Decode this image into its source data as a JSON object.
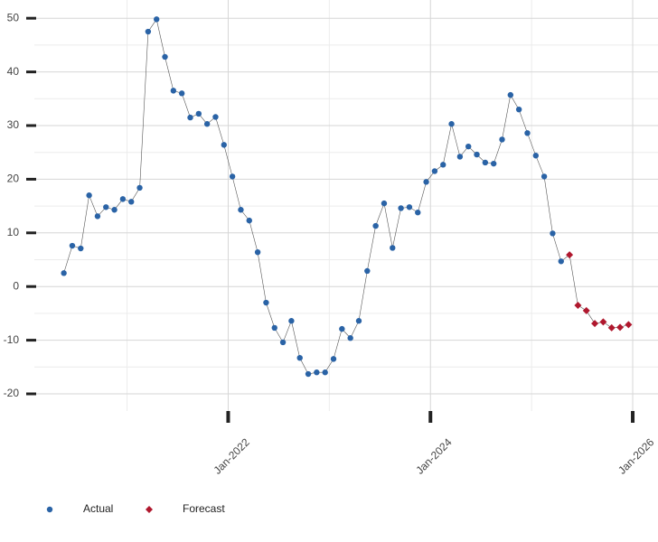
{
  "chart_data": {
    "type": "line",
    "x": [
      "2020-05",
      "2020-06",
      "2020-07",
      "2020-08",
      "2020-09",
      "2020-10",
      "2020-11",
      "2020-12",
      "2021-01",
      "2021-02",
      "2021-03",
      "2021-04",
      "2021-05",
      "2021-06",
      "2021-07",
      "2021-08",
      "2021-09",
      "2021-10",
      "2021-11",
      "2021-12",
      "2022-01",
      "2022-02",
      "2022-03",
      "2022-04",
      "2022-05",
      "2022-06",
      "2022-07",
      "2022-08",
      "2022-09",
      "2022-10",
      "2022-11",
      "2022-12",
      "2023-01",
      "2023-02",
      "2023-03",
      "2023-04",
      "2023-05",
      "2023-06",
      "2023-07",
      "2023-08",
      "2023-09",
      "2023-10",
      "2023-11",
      "2023-12",
      "2024-01",
      "2024-02",
      "2024-03",
      "2024-04",
      "2024-05",
      "2024-06",
      "2024-07",
      "2024-08",
      "2024-09",
      "2024-10",
      "2024-11",
      "2024-12",
      "2025-01",
      "2025-02",
      "2025-03",
      "2025-04",
      "2025-05",
      "2025-06",
      "2025-07",
      "2025-08",
      "2025-09",
      "2025-10",
      "2025-11",
      "2025-12"
    ],
    "series": [
      {
        "name": "Actual",
        "color": "#2a63a6",
        "marker": "circle",
        "values": [
          2.5,
          7.6,
          7.1,
          17.0,
          13.1,
          14.8,
          14.3,
          16.3,
          15.8,
          18.4,
          47.5,
          49.8,
          42.8,
          36.5,
          36.0,
          31.5,
          32.2,
          30.3,
          31.6,
          26.4,
          20.5,
          14.3,
          12.3,
          6.4,
          -3.0,
          -7.7,
          -10.4,
          -6.4,
          -13.3,
          -16.3,
          -16.0,
          -16.0,
          -13.5,
          -7.9,
          -9.6,
          -6.4,
          2.9,
          11.3,
          15.5,
          7.2,
          14.6,
          14.8,
          13.8,
          19.5,
          21.5,
          22.7,
          30.3,
          24.2,
          26.1,
          24.6,
          23.1,
          22.9,
          27.4,
          35.7,
          33.0,
          28.6,
          24.4,
          20.5,
          9.9,
          4.7,
          null,
          null,
          null,
          null,
          null,
          null,
          null,
          null
        ]
      },
      {
        "name": "Forecast",
        "color": "#b0182e",
        "marker": "diamond",
        "values": [
          null,
          null,
          null,
          null,
          null,
          null,
          null,
          null,
          null,
          null,
          null,
          null,
          null,
          null,
          null,
          null,
          null,
          null,
          null,
          null,
          null,
          null,
          null,
          null,
          null,
          null,
          null,
          null,
          null,
          null,
          null,
          null,
          null,
          null,
          null,
          null,
          null,
          null,
          null,
          null,
          null,
          null,
          null,
          null,
          null,
          null,
          null,
          null,
          null,
          null,
          null,
          null,
          null,
          null,
          null,
          null,
          null,
          null,
          null,
          null,
          5.9,
          -3.5,
          -4.5,
          -6.9,
          -6.6,
          -7.7,
          -7.6,
          -7.1
        ]
      }
    ],
    "line_color": "#555555",
    "xlim": [
      "2020-02",
      "2026-04"
    ],
    "xticks": [
      {
        "value": "2022-01",
        "label": "Jan-2022"
      },
      {
        "value": "2024-01",
        "label": "Jan-2024"
      },
      {
        "value": "2026-01",
        "label": "Jan-2026"
      }
    ],
    "ylim": [
      -23.2,
      53.4
    ],
    "yticks": [
      -20,
      -10,
      0,
      10,
      20,
      30,
      40,
      50
    ],
    "grid": true,
    "legend": "bottom-left"
  }
}
